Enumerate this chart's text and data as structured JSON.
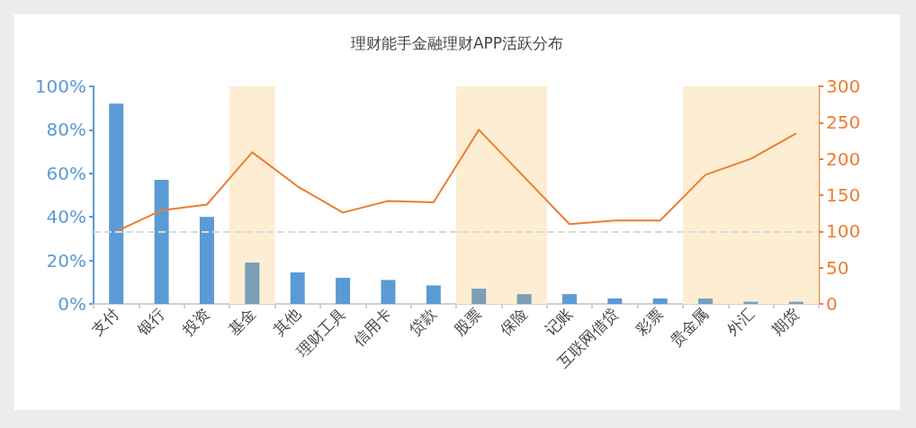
{
  "chart_data": {
    "type": "bar",
    "title": "理财能手金融理财APP活跃分布",
    "categories": [
      "支付",
      "银行",
      "投资",
      "基金",
      "其他",
      "理财工具",
      "信用卡",
      "贷款",
      "股票",
      "保险",
      "记账",
      "互联网借贷",
      "彩票",
      "贵金属",
      "外汇",
      "期货"
    ],
    "series": [
      {
        "type": "bar",
        "color": "#5b9bd5",
        "colors": [
          "#5b9bd5",
          "#5b9bd5",
          "#5b9bd5",
          "#7a9fb5",
          "#5b9bd5",
          "#5b9bd5",
          "#5b9bd5",
          "#5b9bd5",
          "#7a9fb5",
          "#7a9fb5",
          "#5b9bd5",
          "#5b9bd5",
          "#5b9bd5",
          "#7a9fb5",
          "#7a9fb5",
          "#7a9fb5"
        ],
        "values": [
          92,
          57,
          40,
          19,
          14.5,
          12,
          11,
          8.5,
          7,
          4.5,
          4.5,
          2.5,
          2.5,
          2.5,
          1,
          1
        ]
      },
      {
        "type": "line",
        "axis": "y2",
        "color": "#ed7d31",
        "values": [
          100,
          129,
          137,
          209,
          162,
          126,
          142,
          140,
          240,
          175,
          110,
          115,
          115,
          178,
          200,
          235
        ]
      }
    ],
    "ylim": [
      0,
      100
    ],
    "yticks": [
      {
        "value": 0,
        "label": "0%"
      },
      {
        "value": 20,
        "label": "20%"
      },
      {
        "value": 40,
        "label": "40%"
      },
      {
        "value": 60,
        "label": "60%"
      },
      {
        "value": 80,
        "label": "80%"
      },
      {
        "value": 100,
        "label": "100%"
      }
    ],
    "y2lim": [
      0,
      300
    ],
    "y2ticks": [
      0,
      50,
      100,
      150,
      200,
      250,
      300
    ],
    "ref_lines": [
      {
        "axis": "y2",
        "value": 100,
        "color": "#d9d9d9",
        "line_style": "dashed"
      }
    ],
    "bands": [
      {
        "axis": "x",
        "from": "基金",
        "to": "基金",
        "color": "#fdedd3"
      },
      {
        "axis": "x",
        "from": "股票",
        "to": "保险",
        "color": "#fdedd3"
      },
      {
        "axis": "x",
        "from": "贵金属",
        "to": "期货",
        "color": "#fdedd3"
      }
    ],
    "grid": false,
    "marker": "none",
    "line_style": "solid"
  }
}
